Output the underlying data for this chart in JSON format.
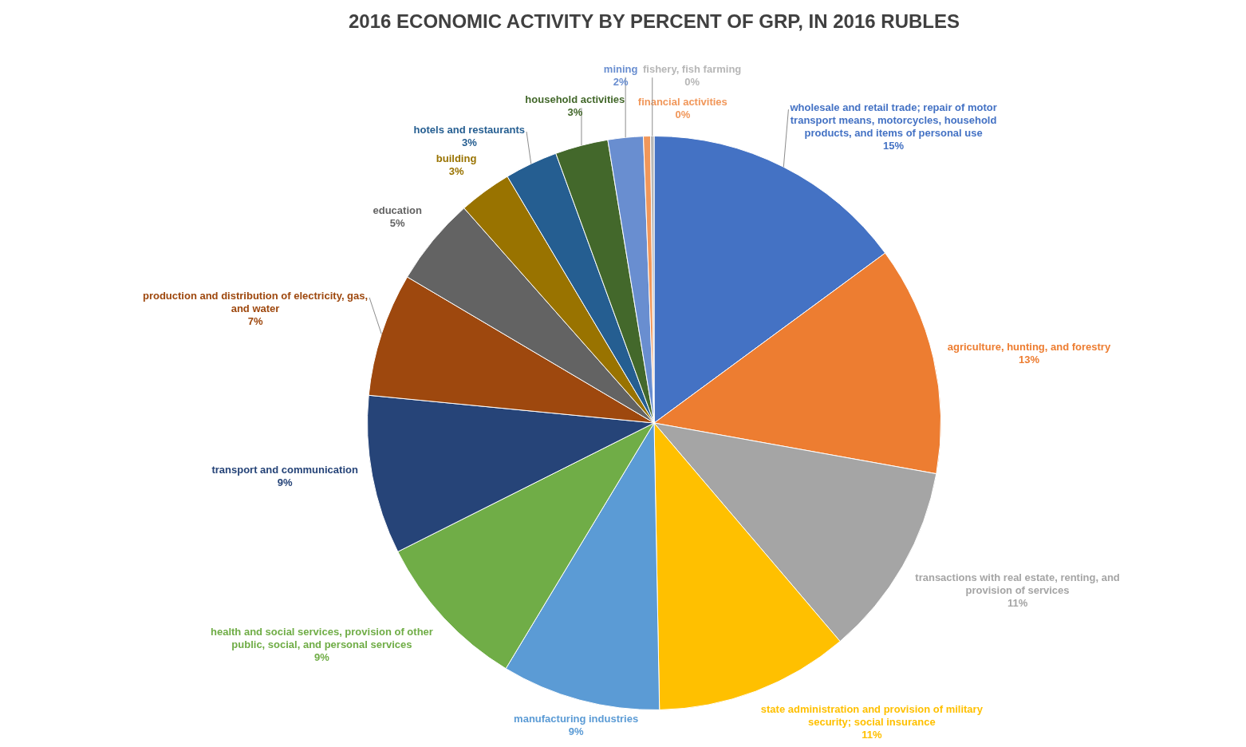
{
  "chart_data": {
    "type": "pie",
    "title": "2016 ECONOMIC ACTIVITY BY PERCENT OF GRP, IN 2016 RUBLES",
    "categories": [
      "wholesale and retail trade; repair of motor transport means, motorcycles, household products, and items of personal use",
      "agriculture, hunting, and forestry",
      "transactions with real estate, renting, and provision of services",
      "state administration and provision of military security; social insurance",
      "manufacturing industries",
      "health and social services, provision of other public, social, and personal services",
      "transport and communication",
      "production and distribution of electricity, gas, and water",
      "education",
      "building",
      "hotels and restaurants",
      "household activities",
      "mining",
      "financial activities",
      "fishery, fish farming"
    ],
    "values": [
      15,
      13,
      11,
      11,
      9,
      9,
      9,
      7,
      5,
      3,
      3,
      3,
      2,
      0.4,
      0.2
    ],
    "value_labels": [
      "15%",
      "13%",
      "11%",
      "11%",
      "9%",
      "9%",
      "9%",
      "7%",
      "5%",
      "3%",
      "3%",
      "3%",
      "2%",
      "0%",
      "0%"
    ],
    "colors": [
      "#4472c4",
      "#ed7d31",
      "#a5a5a5",
      "#ffc000",
      "#5b9bd5",
      "#70ad47",
      "#264478",
      "#9e480e",
      "#636363",
      "#997300",
      "#255e91",
      "#43682b",
      "#698ed0",
      "#f1975a",
      "#b7b7b7"
    ],
    "legend": false
  }
}
